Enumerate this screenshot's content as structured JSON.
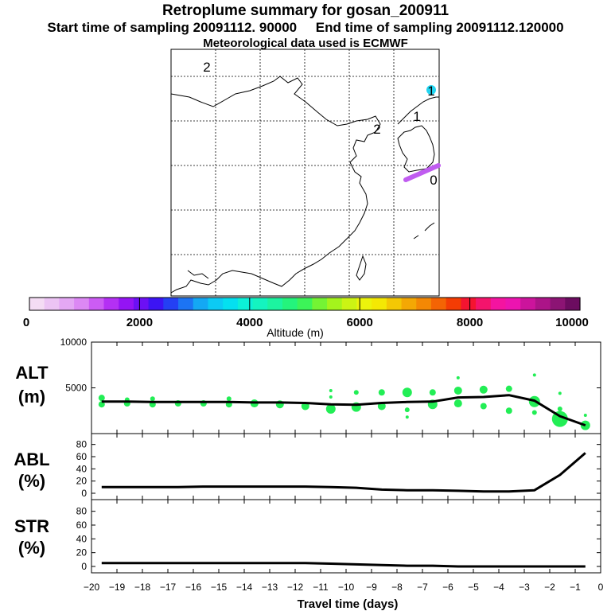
{
  "header": {
    "title": "Retroplume summary for gosan_200911",
    "sampling": "Start time of sampling 20091112. 90000     End time of sampling 20091112.120000",
    "met_data": "Meteorological data used is ECMWF"
  },
  "map": {
    "day_labels": [
      "2",
      "2",
      "1",
      "1",
      "0"
    ]
  },
  "colorbar": {
    "tick_labels": [
      "0",
      "2000",
      "4000",
      "6000",
      "8000",
      "10000"
    ],
    "title": "Altitude (m)",
    "colors": [
      "#f4dcf4",
      "#ecc4f4",
      "#e4a8f4",
      "#dc88f4",
      "#cc5cf4",
      "#b430f4",
      "#9414f4",
      "#6c10f4",
      "#3c14f4",
      "#2440f4",
      "#1c74f4",
      "#14a8f4",
      "#0ccaf4",
      "#04e0f0",
      "#0cf0d8",
      "#14f4c0",
      "#1cf4a0",
      "#24f47c",
      "#3cf458",
      "#74f434",
      "#a4f41c",
      "#ccf414",
      "#ecf40c",
      "#f4e804",
      "#f4c804",
      "#f4a804",
      "#f48804",
      "#f46404",
      "#f43c04",
      "#f41430",
      "#f4146c",
      "#f414a0",
      "#ec14b0",
      "#cc149c",
      "#ac1488",
      "#8c1474",
      "#6c0c60"
    ]
  },
  "chart_data": [
    {
      "type": "line",
      "id": "alt",
      "label_line1": "ALT",
      "label_line2": "(m)",
      "x": [
        -19.6,
        -18.6,
        -17.6,
        -16.6,
        -15.6,
        -14.6,
        -13.6,
        -12.6,
        -11.6,
        -10.6,
        -9.6,
        -8.6,
        -7.6,
        -6.6,
        -5.6,
        -4.6,
        -3.6,
        -2.6,
        -1.6,
        -0.6
      ],
      "values": [
        3500,
        3500,
        3450,
        3450,
        3450,
        3450,
        3400,
        3400,
        3350,
        3200,
        3150,
        3350,
        3450,
        3500,
        3950,
        4000,
        4200,
        3600,
        1900,
        900
      ],
      "ylim": [
        0,
        10000
      ],
      "yticks": [
        5000,
        10000
      ],
      "ytick_labels": [
        "5000",
        "10000"
      ],
      "scatter_color": "#22ee55",
      "scatter": [
        [
          -19.6,
          3200,
          4
        ],
        [
          -19.6,
          3900,
          4
        ],
        [
          -18.6,
          3300,
          4
        ],
        [
          -18.6,
          3700,
          3
        ],
        [
          -17.6,
          3200,
          4
        ],
        [
          -17.6,
          3800,
          3
        ],
        [
          -16.6,
          3300,
          4
        ],
        [
          -15.6,
          3300,
          4
        ],
        [
          -14.6,
          3200,
          4
        ],
        [
          -14.6,
          3800,
          3
        ],
        [
          -13.6,
          3300,
          5
        ],
        [
          -12.6,
          3200,
          5
        ],
        [
          -11.6,
          3000,
          5
        ],
        [
          -10.6,
          2700,
          6
        ],
        [
          -10.6,
          4000,
          2
        ],
        [
          -10.6,
          4700,
          2
        ],
        [
          -9.6,
          2900,
          6
        ],
        [
          -9.6,
          4500,
          3
        ],
        [
          -8.6,
          3000,
          5
        ],
        [
          -8.6,
          4500,
          4
        ],
        [
          -7.6,
          2600,
          3
        ],
        [
          -7.6,
          4500,
          6
        ],
        [
          -7.6,
          1800,
          2
        ],
        [
          -6.6,
          3200,
          6
        ],
        [
          -6.6,
          4500,
          4
        ],
        [
          -5.6,
          3300,
          5
        ],
        [
          -5.6,
          4700,
          5
        ],
        [
          -5.6,
          6100,
          2
        ],
        [
          -4.6,
          3000,
          4
        ],
        [
          -4.6,
          4800,
          5
        ],
        [
          -3.6,
          2500,
          4
        ],
        [
          -3.6,
          4900,
          4
        ],
        [
          -2.6,
          3500,
          7
        ],
        [
          -2.6,
          2300,
          3
        ],
        [
          -2.6,
          6400,
          2
        ],
        [
          -1.6,
          1600,
          10
        ],
        [
          -1.6,
          2700,
          3
        ],
        [
          -1.6,
          4400,
          2
        ],
        [
          -0.6,
          900,
          6
        ],
        [
          -0.6,
          2000,
          2
        ]
      ]
    },
    {
      "type": "line",
      "id": "abl",
      "label_line1": "ABL",
      "label_line2": "(%)",
      "x": [
        -19.6,
        -18.6,
        -17.6,
        -16.6,
        -15.6,
        -14.6,
        -13.6,
        -12.6,
        -11.6,
        -10.6,
        -9.6,
        -8.6,
        -7.6,
        -6.6,
        -5.6,
        -4.6,
        -3.6,
        -2.6,
        -1.6,
        -0.6
      ],
      "values": [
        10,
        10,
        10,
        10,
        11,
        11,
        11,
        11,
        11,
        10,
        9,
        6,
        5,
        5,
        4,
        3,
        3,
        5,
        30,
        66
      ],
      "ylim": [
        0,
        90
      ],
      "yticks": [
        0,
        20,
        40,
        60,
        80
      ],
      "ytick_labels": [
        "0",
        "20",
        "40",
        "60",
        "80"
      ]
    },
    {
      "type": "line",
      "id": "str",
      "label_line1": "STR",
      "label_line2": "(%)",
      "x": [
        -19.6,
        -18.6,
        -17.6,
        -16.6,
        -15.6,
        -14.6,
        -13.6,
        -12.6,
        -11.6,
        -10.6,
        -9.6,
        -8.6,
        -7.6,
        -6.6,
        -5.6,
        -4.6,
        -3.6,
        -2.6,
        -1.6,
        -0.6
      ],
      "values": [
        5,
        5,
        5,
        5,
        5,
        5,
        5,
        5,
        5,
        4,
        3,
        2,
        1,
        1,
        0,
        0,
        0,
        0,
        0,
        0
      ],
      "ylim": [
        0,
        90
      ],
      "yticks": [
        0,
        20,
        40,
        60,
        80
      ],
      "ytick_labels": [
        "0",
        "20",
        "40",
        "60",
        "80"
      ]
    }
  ],
  "xaxis": {
    "xlim": [
      -20,
      0
    ],
    "ticks": [
      -20,
      -19,
      -18,
      -17,
      -16,
      -15,
      -14,
      -13,
      -12,
      -11,
      -10,
      -9,
      -8,
      -7,
      -6,
      -5,
      -4,
      -3,
      -2,
      -1,
      0
    ],
    "tick_labels": [
      "−20",
      "−19",
      "−18",
      "−17",
      "−16",
      "−15",
      "−14",
      "−13",
      "−12",
      "−11",
      "−10",
      "−9",
      "−8",
      "−7",
      "−6",
      "−5",
      "−4",
      "−3",
      "−2",
      "−1",
      "0"
    ],
    "label": "Travel time (days)"
  }
}
